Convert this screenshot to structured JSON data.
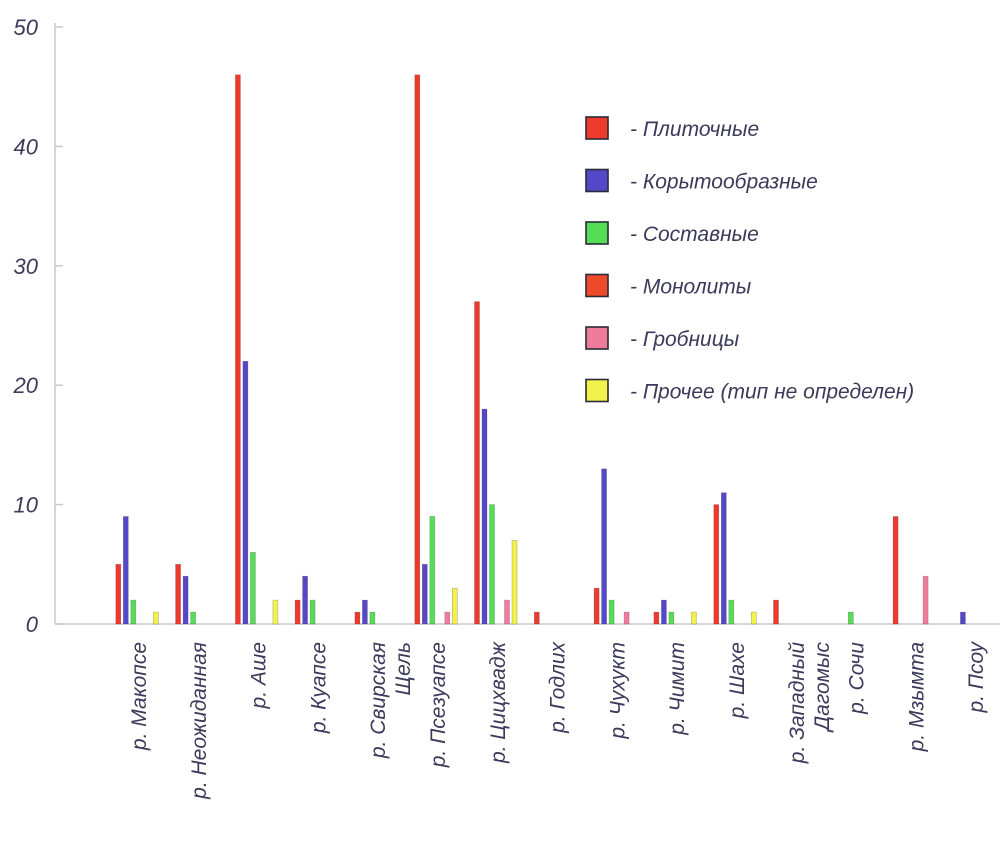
{
  "chart_data": {
    "type": "bar",
    "title": "",
    "xlabel": "",
    "ylabel": "",
    "ylim": [
      0,
      50
    ],
    "yticks": [
      "0",
      "10",
      "20",
      "30",
      "40",
      "50"
    ],
    "grid": false,
    "legend_position": "top-right",
    "categories": [
      "р. Макопсе",
      "р. Неожиданная",
      "р. Аше",
      "р. Куапсе",
      "р. Свирская Щель",
      "р. Псезуапсе",
      "р. Цицхвадж",
      "р. Годлих",
      "р. Чухукт",
      "р. Чимит",
      "р. Шахе",
      "р. Западный Дагомыс",
      "р. Сочи",
      "р. Мзымта",
      "р. Псоу"
    ],
    "category_lines": [
      [
        "р. Макопсе"
      ],
      [
        "р. Неожиданная"
      ],
      [
        "р. Аше"
      ],
      [
        "р. Куапсе"
      ],
      [
        "р. Свирская",
        "Щель"
      ],
      [
        "р. Псезуапсе"
      ],
      [
        "р. Цицхвадж"
      ],
      [
        "р. Годлих"
      ],
      [
        "р. Чухукт"
      ],
      [
        "р. Чимит"
      ],
      [
        "р. Шахе"
      ],
      [
        "р. Западный",
        "Дагомыс"
      ],
      [
        "р. Сочи"
      ],
      [
        "р. Мзымта"
      ],
      [
        "р. Псоу"
      ]
    ],
    "series": [
      {
        "name": "- Плиточные",
        "color": "#ee3a2c",
        "values": [
          5,
          5,
          46,
          2,
          1,
          46,
          27,
          1,
          3,
          1,
          10,
          2,
          0,
          9,
          0
        ]
      },
      {
        "name": "- Корытообразные",
        "color": "#5548c8",
        "values": [
          9,
          4,
          22,
          4,
          2,
          5,
          18,
          0,
          13,
          2,
          11,
          0,
          0,
          0,
          1
        ]
      },
      {
        "name": "- Составные",
        "color": "#55dd55",
        "values": [
          2,
          1,
          6,
          2,
          1,
          9,
          10,
          0,
          2,
          1,
          2,
          0,
          1,
          0,
          0
        ]
      },
      {
        "name": "- Монолиты",
        "color": "#ee4a2a",
        "values": [
          0,
          0,
          0,
          0,
          0,
          0,
          0,
          0,
          0,
          0,
          0,
          0,
          0,
          0,
          0
        ]
      },
      {
        "name": "- Гробницы",
        "color": "#f07c9c",
        "values": [
          0,
          0,
          0,
          0,
          0,
          1,
          2,
          0,
          1,
          0,
          0,
          0,
          0,
          4,
          0
        ]
      },
      {
        "name": "- Прочее (тип не определен)",
        "color": "#f2f24a",
        "values": [
          1,
          0,
          2,
          0,
          0,
          3,
          7,
          0,
          0,
          1,
          1,
          0,
          0,
          0,
          0
        ]
      }
    ]
  }
}
